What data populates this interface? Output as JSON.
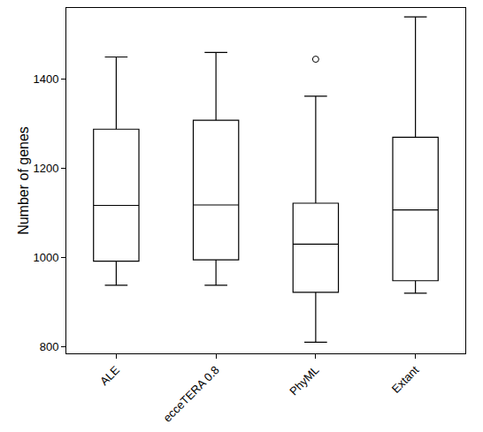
{
  "chart_data": {
    "type": "box",
    "ylabel": "Number of genes",
    "categories": [
      "ALE",
      "ecceTERA 0.8",
      "PhyML",
      "Extant"
    ],
    "lower_whisker": [
      938,
      938,
      810,
      920
    ],
    "q1": [
      992,
      995,
      922,
      948
    ],
    "median": [
      1117,
      1118,
      1030,
      1107
    ],
    "q3": [
      1288,
      1308,
      1122,
      1270
    ],
    "upper_whisker": [
      1450,
      1460,
      1362,
      1540
    ],
    "outliers": [
      [],
      [],
      [
        1445
      ],
      []
    ],
    "color": "#000000",
    "ylim": [
      785,
      1560
    ],
    "yticks": [
      800,
      1000,
      1200,
      1400
    ],
    "grid": false
  }
}
